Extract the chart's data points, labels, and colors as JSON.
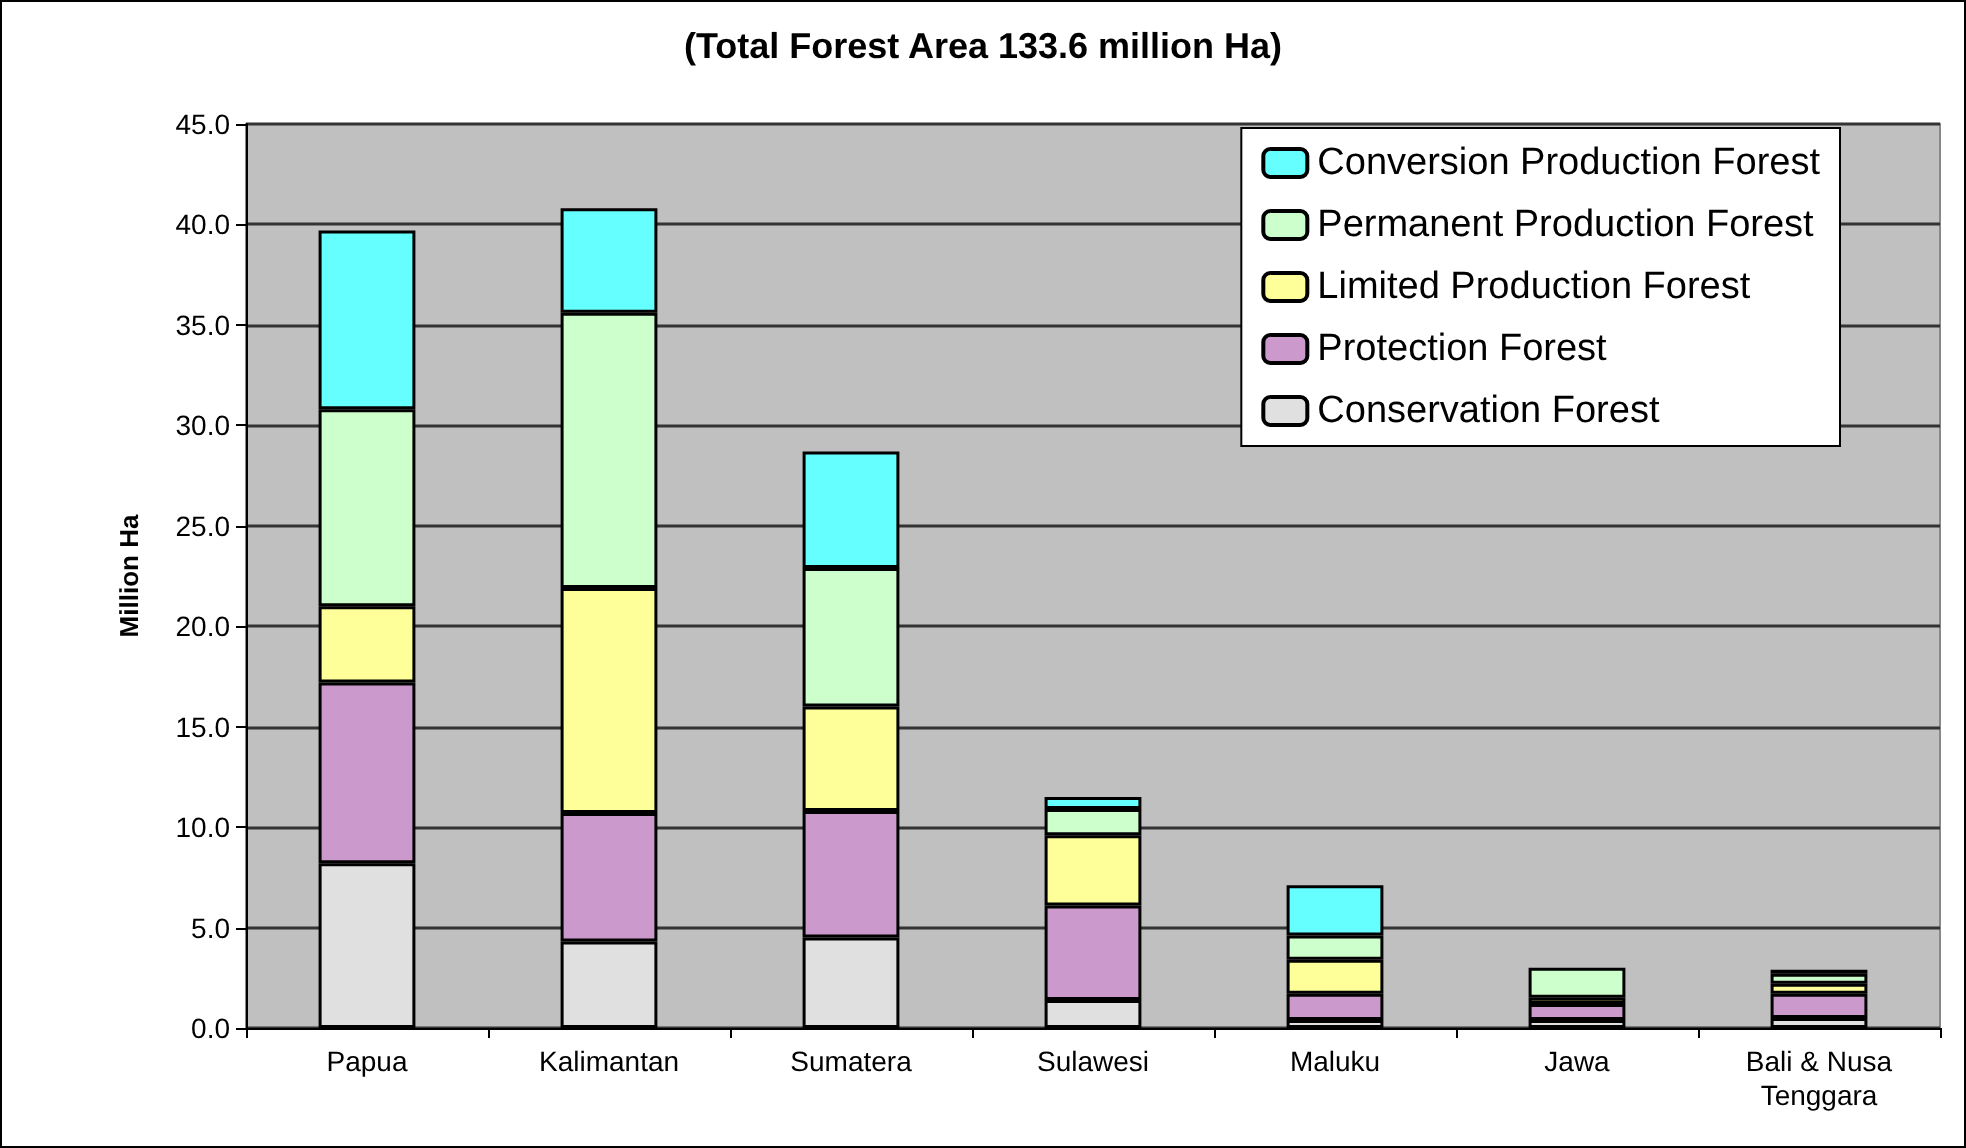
{
  "chart_data": {
    "type": "bar",
    "title": "(Total Forest Area 133.6 million Ha)",
    "ylabel": "Million Ha",
    "stacked": true,
    "grid": "y",
    "legend": "top right",
    "categories": [
      "Papua",
      "Kalimantan",
      "Sumatera",
      "Sulawesi",
      "Maluku",
      "Jawa",
      "Bali & Nusa\nTenggara"
    ],
    "ylim": [
      0,
      45
    ],
    "yticks": [
      {
        "value": 0,
        "label": "0.0"
      },
      {
        "value": 5,
        "label": "5.0"
      },
      {
        "value": 10,
        "label": "10.0"
      },
      {
        "value": 15,
        "label": "15.0"
      },
      {
        "value": 20,
        "label": "20.0"
      },
      {
        "value": 25,
        "label": "25.0"
      },
      {
        "value": 30,
        "label": "30.0"
      },
      {
        "value": 35,
        "label": "35.0"
      },
      {
        "value": 40,
        "label": "40.0"
      },
      {
        "value": 45,
        "label": "45.0"
      }
    ],
    "series": [
      {
        "name": "Conservation Forest",
        "color": "#e0e0e0",
        "values": [
          8.2,
          4.3,
          4.5,
          1.4,
          0.4,
          0.4,
          0.5
        ]
      },
      {
        "name": "Protection Forest",
        "color": "#cc99cc",
        "values": [
          9.0,
          6.4,
          6.3,
          4.7,
          1.3,
          0.8,
          1.2
        ]
      },
      {
        "name": "Limited Production Forest",
        "color": "#ffff99",
        "values": [
          3.8,
          11.2,
          5.2,
          3.5,
          1.7,
          0.3,
          0.5
        ]
      },
      {
        "name": "Permanent Production Forest",
        "color": "#ccffcc",
        "values": [
          9.8,
          13.7,
          6.9,
          1.3,
          1.2,
          1.5,
          0.5
        ]
      },
      {
        "name": "Conversion Production Forest",
        "color": "#66ffff",
        "values": [
          8.9,
          5.2,
          5.8,
          0.6,
          2.5,
          null,
          0.2
        ]
      }
    ]
  }
}
